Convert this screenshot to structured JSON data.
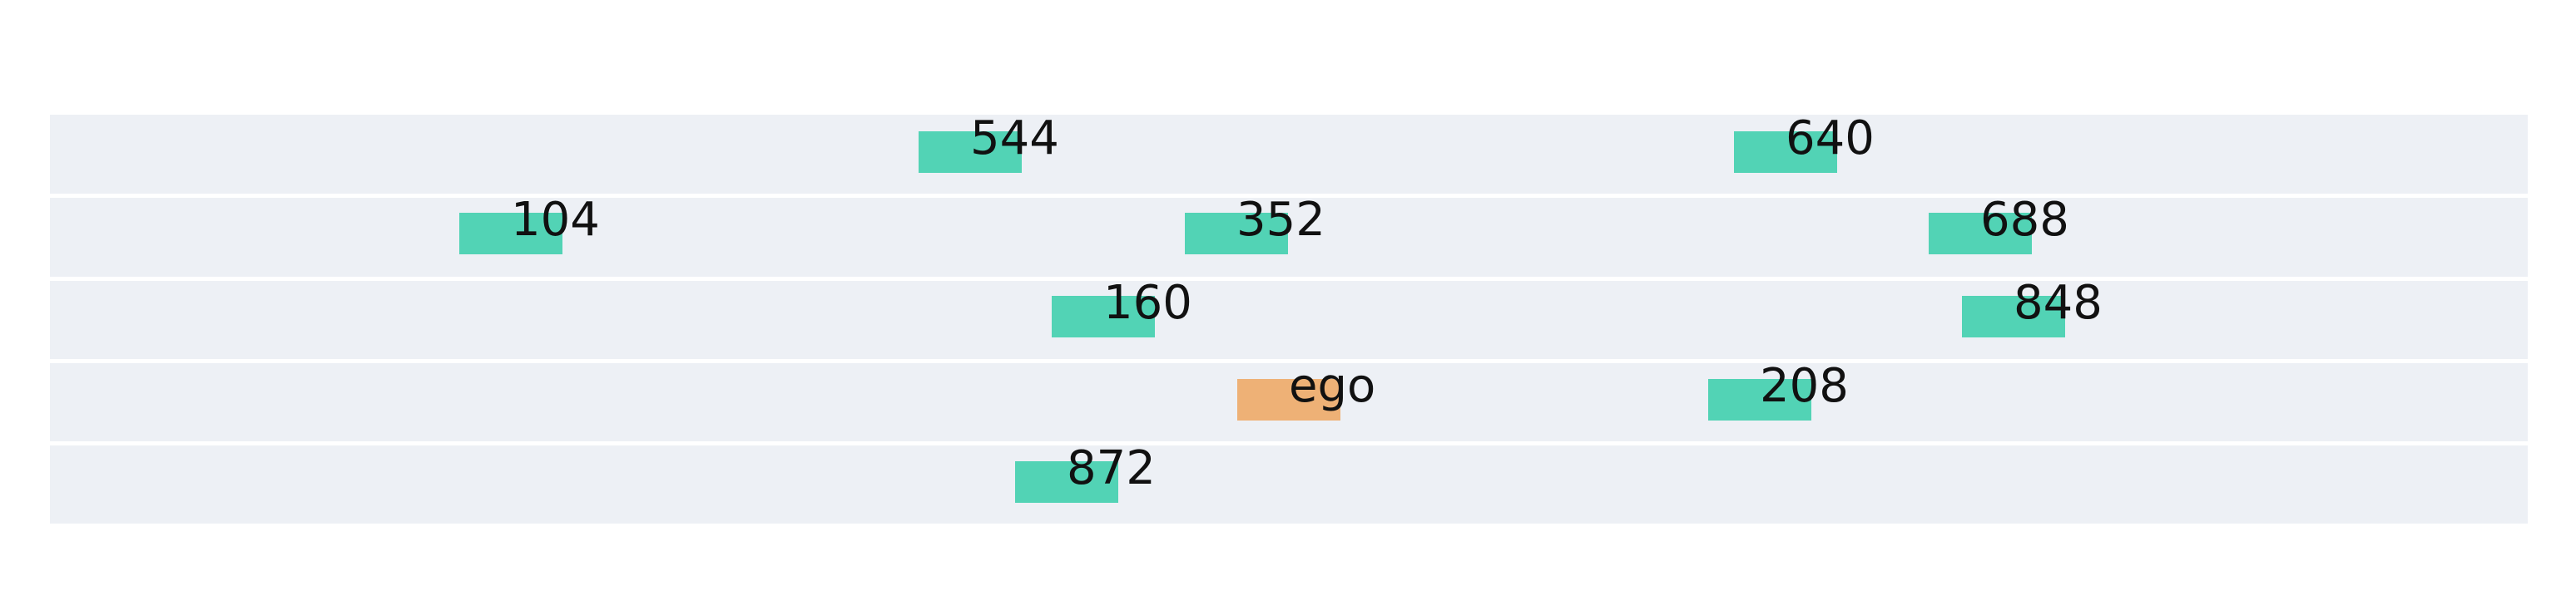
{
  "colors": {
    "lane_bg": "#edf0f5",
    "lane_separator": "#ffffff",
    "other_vehicle": "#52d3b5",
    "ego_vehicle": "#eeb176",
    "label_text": "#111111"
  },
  "lanes": [
    {
      "lane": 0,
      "vehicles": [
        {
          "label": "544",
          "type": "other"
        },
        {
          "label": "640",
          "type": "other"
        }
      ]
    },
    {
      "lane": 1,
      "vehicles": [
        {
          "label": "104",
          "type": "other"
        },
        {
          "label": "352",
          "type": "other"
        },
        {
          "label": "688",
          "type": "other"
        }
      ]
    },
    {
      "lane": 2,
      "vehicles": [
        {
          "label": "160",
          "type": "other"
        },
        {
          "label": "848",
          "type": "other"
        }
      ]
    },
    {
      "lane": 3,
      "vehicles": [
        {
          "label": "ego",
          "type": "ego"
        },
        {
          "label": "208",
          "type": "other"
        }
      ]
    },
    {
      "lane": 4,
      "vehicles": [
        {
          "label": "872",
          "type": "other"
        }
      ]
    }
  ]
}
